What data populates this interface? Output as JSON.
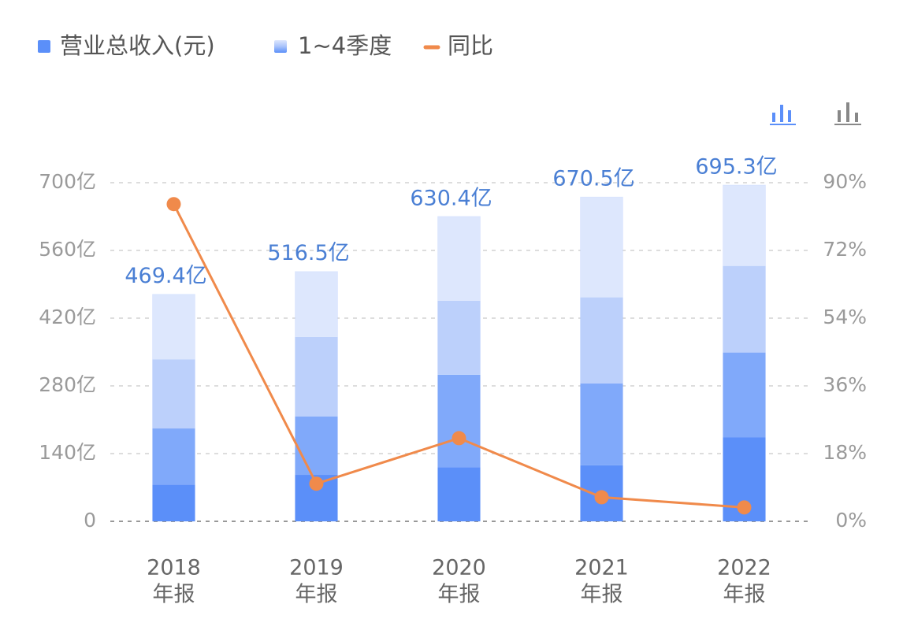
{
  "chart_data": {
    "type": "stacked_bar_line",
    "categories": [
      [
        "2018",
        "年报"
      ],
      [
        "2019",
        "年报"
      ],
      [
        "2020",
        "年报"
      ],
      [
        "2021",
        "年报"
      ],
      [
        "2022",
        "年报"
      ]
    ],
    "series": [
      {
        "name": "营业总收入(元)",
        "color": "#5b8ff9",
        "values": [
          469.4,
          516.5,
          630.4,
          670.5,
          695.3
        ],
        "value_labels": [
          "469.4亿",
          "516.5亿",
          "630.4亿",
          "670.5亿",
          "695.3亿"
        ]
      },
      {
        "name": "1~4季度",
        "colors": [
          "#5b8ff9",
          "#80a9fa",
          "#bcd0fb",
          "#dde7fd"
        ],
        "values": [
          [
            76,
            116,
            143,
            134.4
          ],
          [
            96,
            121,
            164,
            135.5
          ],
          [
            112,
            191,
            153,
            174.4
          ],
          [
            116,
            169,
            178,
            207.5
          ],
          [
            174,
            175,
            179,
            167.3
          ]
        ]
      },
      {
        "name": "同比",
        "color": "#f08a4b",
        "axis": "y2",
        "values": [
          84.3,
          10.0,
          22.1,
          6.4,
          3.7
        ]
      }
    ],
    "ylim": [
      0,
      700
    ],
    "yticks": [
      0,
      {
        "value": 140,
        "label": "140亿"
      },
      {
        "value": 280,
        "label": "280亿"
      },
      {
        "value": 420,
        "label": "420亿"
      },
      {
        "value": 560,
        "label": "560亿"
      },
      {
        "value": 700,
        "label": "700亿"
      }
    ],
    "y2lim": [
      0,
      90
    ],
    "y2ticks": [
      {
        "value": 0,
        "label": "0%"
      },
      {
        "value": 18,
        "label": "18%"
      },
      {
        "value": 36,
        "label": "36%"
      },
      {
        "value": 54,
        "label": "54%"
      },
      {
        "value": 72,
        "label": "72%"
      },
      {
        "value": 90,
        "label": "90%"
      }
    ],
    "grid": true
  }
}
